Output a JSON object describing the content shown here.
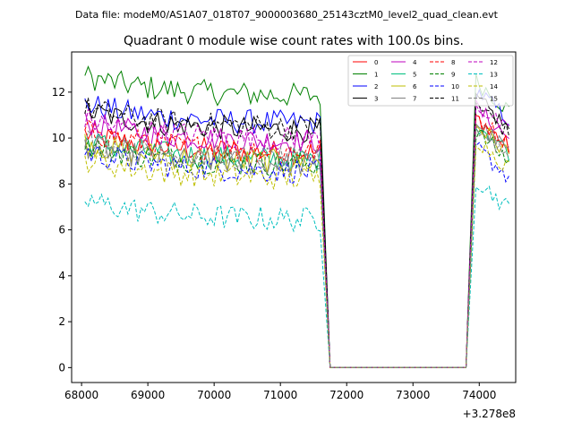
{
  "chart_data": {
    "type": "line",
    "suptitle": "Data file: modeM0/AS1A07_018T07_9000003680_25143cztM0_level2_quad_clean.evt",
    "title": "Quadrant 0 module wise count rates with 100.0s bins.",
    "xlabel": "",
    "ylabel": "",
    "x_offset_label": "+3.278e8",
    "xlim": [
      67850,
      74550
    ],
    "ylim": [
      -0.65,
      13.75
    ],
    "xticks": [
      68000,
      69000,
      70000,
      71000,
      72000,
      73000,
      74000
    ],
    "xtick_labels": [
      "68000",
      "69000",
      "70000",
      "71000",
      "72000",
      "73000",
      "74000"
    ],
    "yticks": [
      0,
      2,
      4,
      6,
      8,
      10,
      12
    ],
    "ytick_labels": [
      "0",
      "2",
      "4",
      "6",
      "8",
      "10",
      "12"
    ],
    "grid": false,
    "legend_location": "top-right",
    "legend_columns": 4,
    "gap": {
      "last_before": 71600,
      "zero_start": 71750,
      "zero_end": 73800,
      "first_after": 73950,
      "zero_value": 0
    },
    "series": [
      {
        "name": "0",
        "color": "#ff0000",
        "dash": "solid",
        "level": 9.3,
        "end": 9.6
      },
      {
        "name": "1",
        "color": "#008000",
        "dash": "solid",
        "level": 11.8,
        "end": 11.2
      },
      {
        "name": "2",
        "color": "#0000ff",
        "dash": "solid",
        "level": 10.6,
        "end": 10.8
      },
      {
        "name": "3",
        "color": "#000000",
        "dash": "solid",
        "level": 10.3,
        "end": 10.4
      },
      {
        "name": "4",
        "color": "#bf00bf",
        "dash": "solid",
        "level": 9.8,
        "end": 10.0
      },
      {
        "name": "5",
        "color": "#00bf7f",
        "dash": "solid",
        "level": 9.0,
        "end": 9.4
      },
      {
        "name": "6",
        "color": "#bfbf00",
        "dash": "solid",
        "level": 8.9,
        "end": 9.3
      },
      {
        "name": "7",
        "color": "#808080",
        "dash": "solid",
        "level": 8.8,
        "end": 9.4
      },
      {
        "name": "8",
        "color": "#ff0000",
        "dash": "dashed",
        "level": 9.4,
        "end": 9.7
      },
      {
        "name": "9",
        "color": "#008000",
        "dash": "dashed",
        "level": 8.8,
        "end": 9.0
      },
      {
        "name": "10",
        "color": "#0000ff",
        "dash": "dashed",
        "level": 8.5,
        "end": 8.3
      },
      {
        "name": "11",
        "color": "#000000",
        "dash": "dashed",
        "level": 10.4,
        "end": 10.2
      },
      {
        "name": "12",
        "color": "#bf00bf",
        "dash": "dashed",
        "level": 9.9,
        "end": 10.2
      },
      {
        "name": "13",
        "color": "#00bfbf",
        "dash": "dashed",
        "level": 6.4,
        "end": 6.9
      },
      {
        "name": "14",
        "color": "#bfbf00",
        "dash": "dashed",
        "level": 8.2,
        "end": 8.7
      },
      {
        "name": "15",
        "color": "#808080",
        "dash": "dashed",
        "level": 9.0,
        "end": 9.2
      }
    ]
  }
}
